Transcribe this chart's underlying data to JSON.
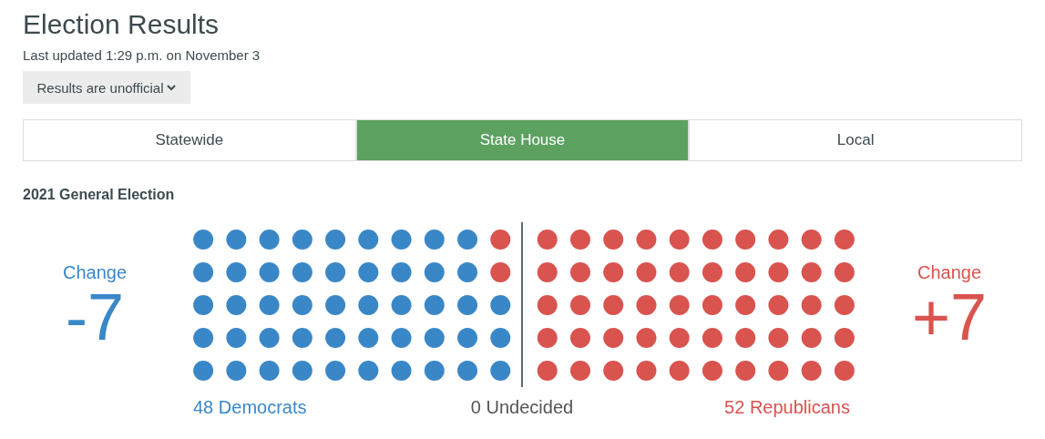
{
  "chart_data": {
    "type": "other",
    "title": "Election Results",
    "subtitle": "Last updated 1:29 p.m. on November 3",
    "categories": [
      "Democrats",
      "Undecided",
      "Republicans"
    ],
    "values": [
      48,
      0,
      52
    ],
    "colors": [
      "#3a87c8",
      "#555555",
      "#d9534f"
    ],
    "data_labels": true,
    "annotations": [
      "Results are unofficial",
      "Statewide",
      "State House",
      "Local",
      "2021 General Election",
      "Change",
      "-7",
      "Change",
      "+7"
    ]
  }
}
